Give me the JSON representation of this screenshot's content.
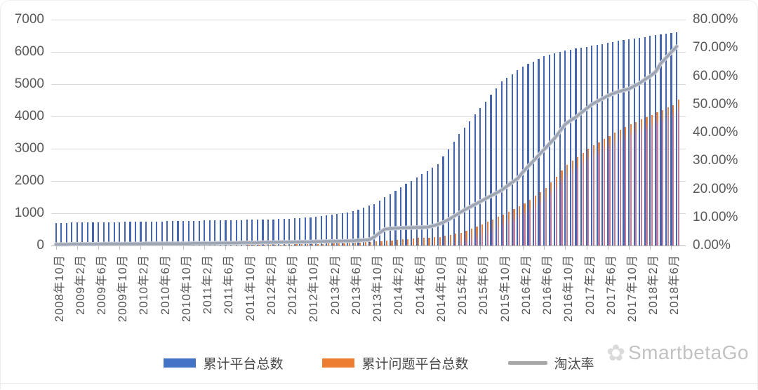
{
  "chart_data": {
    "type": "bar",
    "combo": "monthly bars with overlay line, dual y-axis",
    "x_start_month": "2008年10月",
    "x_months_count": 118,
    "x_tick_labels": [
      "2008年10月",
      "2009年2月",
      "2009年6月",
      "2009年10月",
      "2010年2月",
      "2010年6月",
      "2010年10月",
      "2011年2月",
      "2011年6月",
      "2011年10月",
      "2012年2月",
      "2012年6月",
      "2012年10月",
      "2013年2月",
      "2013年6月",
      "2013年10月",
      "2014年2月",
      "2014年6月",
      "2014年10月",
      "2015年2月",
      "2015年6月",
      "2015年10月",
      "2016年2月",
      "2016年6月",
      "2016年10月",
      "2017年2月",
      "2017年6月",
      "2017年10月",
      "2018年2月",
      "2018年6月"
    ],
    "x_tick_every_n_months": 4,
    "y_left": {
      "ticks": [
        "0",
        "1000",
        "2000",
        "3000",
        "4000",
        "5000",
        "6000",
        "7000"
      ],
      "range": [
        0,
        7000
      ]
    },
    "y_right": {
      "ticks": [
        "0.00%",
        "10.00%",
        "20.00%",
        "30.00%",
        "40.00%",
        "50.00%",
        "60.00%",
        "70.00%",
        "80.00%"
      ],
      "range": [
        0,
        80
      ]
    },
    "grid": "horizontal",
    "legend_position": "bottom",
    "series": [
      {
        "name": "累计平台总数",
        "type": "bar",
        "axis": "left",
        "color": "#4472C4",
        "values": [
          700,
          702,
          705,
          708,
          710,
          712,
          714,
          716,
          718,
          720,
          723,
          725,
          728,
          730,
          733,
          735,
          738,
          740,
          743,
          745,
          748,
          751,
          754,
          757,
          760,
          763,
          766,
          769,
          772,
          775,
          778,
          781,
          784,
          787,
          790,
          793,
          796,
          799,
          803,
          806,
          810,
          815,
          820,
          825,
          830,
          842,
          854,
          866,
          878,
          895,
          913,
          930,
          948,
          976,
          1004,
          1032,
          1060,
          1117,
          1175,
          1232,
          1290,
          1392,
          1495,
          1597,
          1700,
          1802,
          1905,
          2007,
          2110,
          2212,
          2315,
          2417,
          2520,
          2752,
          2985,
          3217,
          3450,
          3652,
          3855,
          4057,
          4260,
          4465,
          4670,
          4875,
          5080,
          5195,
          5310,
          5425,
          5540,
          5620,
          5700,
          5780,
          5860,
          5905,
          5950,
          5995,
          6040,
          6070,
          6100,
          6130,
          6160,
          6190,
          6220,
          6250,
          6280,
          6310,
          6340,
          6370,
          6400,
          6422,
          6445,
          6467,
          6490,
          6512,
          6535,
          6557,
          6580,
          6610
        ]
      },
      {
        "name": "累计问题平台总数",
        "type": "bar",
        "axis": "left",
        "color": "#ED7D31",
        "values": [
          3,
          4,
          4,
          5,
          5,
          6,
          6,
          7,
          8,
          8,
          9,
          9,
          10,
          10,
          11,
          11,
          12,
          12,
          13,
          13,
          14,
          14,
          15,
          15,
          16,
          16,
          17,
          17,
          18,
          18,
          19,
          19,
          20,
          20,
          21,
          21,
          22,
          23,
          23,
          24,
          25,
          26,
          27,
          29,
          30,
          33,
          35,
          38,
          40,
          45,
          50,
          55,
          60,
          66,
          73,
          79,
          85,
          94,
          103,
          111,
          120,
          134,
          148,
          161,
          175,
          189,
          203,
          216,
          230,
          238,
          245,
          253,
          260,
          295,
          330,
          365,
          400,
          465,
          530,
          595,
          660,
          735,
          810,
          885,
          960,
          1045,
          1130,
          1215,
          1300,
          1420,
          1540,
          1660,
          1780,
          1960,
          2140,
          2320,
          2500,
          2625,
          2750,
          2875,
          3000,
          3100,
          3200,
          3300,
          3400,
          3490,
          3580,
          3670,
          3760,
          3833,
          3905,
          3978,
          4050,
          4125,
          4200,
          4275,
          4350,
          4530
        ]
      },
      {
        "name": "淘汰率",
        "type": "line",
        "axis": "right",
        "color": "#A6A6A6",
        "values_pct": [
          0.4,
          0.4,
          0.4,
          0.5,
          0.5,
          0.5,
          0.5,
          0.5,
          0.5,
          0.6,
          0.6,
          0.6,
          0.6,
          0.6,
          0.6,
          0.6,
          0.6,
          0.7,
          0.7,
          0.7,
          0.7,
          0.7,
          0.7,
          0.7,
          0.7,
          0.7,
          0.8,
          0.8,
          0.8,
          0.8,
          0.8,
          0.9,
          0.9,
          0.9,
          0.9,
          1.0,
          1.0,
          1.0,
          1.0,
          1.1,
          1.1,
          1.1,
          1.2,
          1.2,
          1.2,
          1.2,
          1.3,
          1.3,
          1.3,
          1.4,
          1.4,
          1.5,
          1.5,
          1.5,
          1.6,
          1.6,
          1.7,
          1.8,
          1.9,
          2.0,
          3.0,
          4.5,
          5.8,
          6.0,
          6.1,
          6.2,
          6.3,
          6.3,
          6.4,
          6.4,
          6.5,
          6.9,
          7.5,
          8.2,
          9.2,
          10.3,
          11.5,
          12.6,
          13.6,
          14.6,
          15.6,
          16.6,
          17.6,
          18.6,
          19.6,
          21.0,
          22.4,
          23.7,
          26.0,
          28.0,
          30.0,
          32.0,
          34.0,
          36.0,
          38.0,
          40.5,
          43.0,
          44.3,
          45.5,
          47.0,
          48.5,
          50.0,
          51.0,
          52.0,
          53.0,
          53.8,
          54.5,
          55.0,
          55.5,
          56.5,
          57.5,
          58.8,
          60.0,
          61.5,
          64.5,
          66.5,
          68.5,
          70.5
        ]
      }
    ]
  },
  "legend": {
    "item_total": "累计平台总数",
    "item_problem": "累计问题平台总数",
    "item_rate": "淘汰率"
  },
  "watermark": {
    "logo_icon": "scribble-flower",
    "text": "SmartbetaGo"
  }
}
